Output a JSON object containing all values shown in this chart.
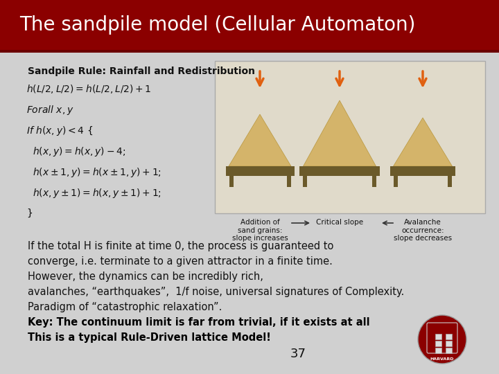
{
  "title": "The sandpile model (Cellular Automaton)",
  "title_bg": "#8B0000",
  "title_color": "#FFFFFF",
  "title_fontsize": 20,
  "slide_bg_top": "#D8D8D8",
  "slide_bg": "#C8C8C8",
  "subtitle": "Sandpile Rule: Rainfall and Redistribution",
  "subtitle_fontsize": 10,
  "body_text_normal": [
    "If the total H is finite at time 0, the process is guaranteed to",
    "converge, i.e. terminate to a given attractor in a finite time.",
    "However, the dynamics can be incredibly rich,",
    "avalanches, “earthquakes”,  1/f noise, universal signatures of Complexity.",
    "Paradigm of “catastrophic relaxation”."
  ],
  "body_text_bold": [
    "Key: The continuum limit is far from trivial, if it exists at all",
    "This is a typical Rule-Driven lattice Model!"
  ],
  "page_number": "37",
  "body_fontsize": 10.5
}
